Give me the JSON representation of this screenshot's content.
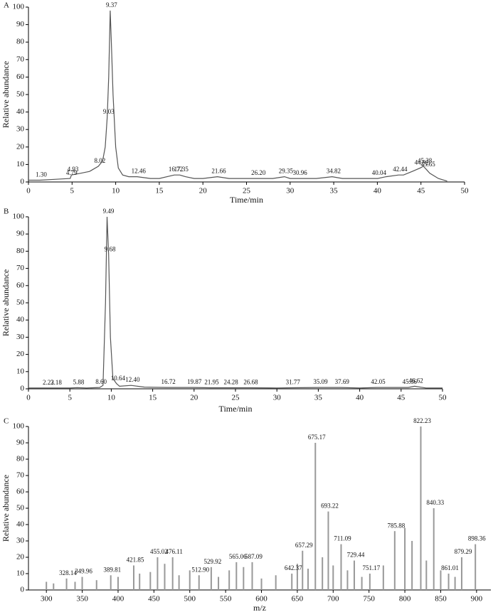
{
  "chart_data": [
    {
      "type": "line",
      "panel_label": "A",
      "x_label": "Time/min",
      "y_label": "Relative abundance",
      "color": "#555555",
      "xlim": [
        0,
        50
      ],
      "xticks": [
        0,
        5,
        10,
        15,
        20,
        25,
        30,
        35,
        40,
        45,
        50
      ],
      "ylim": [
        0,
        100
      ],
      "yticks": [
        0,
        10,
        20,
        30,
        40,
        50,
        60,
        70,
        80,
        90,
        100
      ],
      "x": [
        0,
        1.3,
        3,
        4.79,
        4.93,
        6,
        7,
        8.02,
        8.5,
        8.8,
        9.03,
        9.2,
        9.37,
        9.5,
        9.7,
        10,
        10.3,
        10.8,
        11.5,
        12.46,
        14,
        15,
        16.72,
        17.35,
        18,
        19,
        20,
        21.66,
        23,
        24,
        26.2,
        27,
        28,
        29.35,
        30,
        30.96,
        32,
        33,
        34.82,
        36,
        37,
        38,
        40.04,
        41,
        42.44,
        43,
        44,
        44.92,
        45.28,
        45.65,
        46,
        47,
        48
      ],
      "values": [
        1,
        1,
        1.5,
        2,
        4,
        5,
        6,
        9,
        12,
        20,
        37,
        60,
        98,
        80,
        50,
        20,
        8,
        4,
        3,
        3,
        2,
        2,
        4,
        4,
        3,
        2,
        2,
        3,
        2,
        2,
        2,
        2,
        2,
        3,
        2,
        2,
        2,
        2,
        3,
        2,
        2,
        2,
        2,
        3,
        4,
        4,
        6,
        8,
        9,
        7,
        5,
        2,
        0.5
      ],
      "x_labels": [
        null,
        "1.30",
        null,
        "4.79",
        "4.93",
        null,
        null,
        "8.02",
        null,
        null,
        "9.03",
        null,
        "9.37",
        null,
        null,
        null,
        null,
        null,
        null,
        "12.46",
        null,
        null,
        "16.72",
        "17.35",
        null,
        null,
        null,
        "21.66",
        null,
        null,
        "26.20",
        null,
        null,
        "29.35",
        null,
        "30.96",
        null,
        null,
        "34.82",
        null,
        null,
        null,
        "40.04",
        null,
        "42.44",
        null,
        null,
        "44.92",
        "45.28",
        "45.65",
        null,
        null,
        null
      ]
    },
    {
      "type": "line",
      "panel_label": "B",
      "x_label": "Time/min",
      "y_label": "Relative abundance",
      "color": "#555555",
      "xlim": [
        0,
        50
      ],
      "xticks": [
        0,
        5,
        10,
        15,
        20,
        25,
        30,
        35,
        40,
        45,
        50
      ],
      "ylim": [
        0,
        100
      ],
      "yticks": [
        0,
        10,
        20,
        30,
        40,
        50,
        60,
        70,
        80,
        90,
        100
      ],
      "x": [
        0,
        2.22,
        3.18,
        5,
        5.88,
        7,
        8.6,
        9,
        9.3,
        9.49,
        9.68,
        9.9,
        10.2,
        10.64,
        11,
        12.4,
        14,
        16.72,
        19.87,
        21.95,
        24.28,
        26.68,
        30,
        31.77,
        35.09,
        37.69,
        40,
        42.05,
        45.86,
        46.62,
        48,
        50
      ],
      "values": [
        0.5,
        0.5,
        0.5,
        0.5,
        0.7,
        0.5,
        0.8,
        2,
        50,
        100,
        78,
        30,
        6,
        3,
        1.5,
        2,
        1,
        0.8,
        0.8,
        0.6,
        0.6,
        0.6,
        0.5,
        0.6,
        0.8,
        0.8,
        0.5,
        0.8,
        0.8,
        1.5,
        0.5,
        0.5
      ],
      "x_labels": [
        null,
        "2.22",
        "3.18",
        null,
        "5.88",
        null,
        "8.60",
        null,
        null,
        "9.49",
        "9.68",
        null,
        null,
        "10.64",
        null,
        "12.40",
        null,
        "16.72",
        "19.87",
        "21.95",
        "24.28",
        "26.68",
        null,
        "31.77",
        "35.09",
        "37.69",
        null,
        "42.05",
        "45.86",
        "46.62",
        null,
        null
      ]
    },
    {
      "type": "bar",
      "panel_label": "C",
      "x_label": "m/z",
      "y_label": "Relative abundance",
      "color": "#999999",
      "xlim": [
        275,
        920
      ],
      "xticks": [
        300,
        350,
        400,
        450,
        500,
        550,
        600,
        650,
        700,
        750,
        800,
        850,
        900
      ],
      "ylim": [
        0,
        100
      ],
      "yticks": [
        0,
        10,
        20,
        30,
        40,
        50,
        60,
        70,
        80,
        90,
        100
      ],
      "x": [
        300,
        310,
        328.14,
        340,
        349.96,
        370,
        389.81,
        400,
        421.85,
        430,
        445,
        455.02,
        465,
        476.11,
        485,
        500,
        512.9,
        529.92,
        540,
        555,
        565.06,
        575,
        587.09,
        600,
        620,
        642.37,
        650,
        657.29,
        665,
        675.17,
        685,
        693.22,
        700,
        711.09,
        720,
        729.44,
        740,
        751.17,
        770,
        785.88,
        800,
        810,
        822.23,
        830,
        840.33,
        850,
        861.01,
        870,
        879.29,
        898.36
      ],
      "values": [
        5,
        4,
        7,
        5,
        8,
        6,
        9,
        8,
        15,
        10,
        11,
        20,
        16,
        20,
        9,
        12,
        9,
        14,
        8,
        12,
        17,
        14,
        17,
        7,
        9,
        10,
        16,
        24,
        13,
        90,
        20,
        48,
        15,
        28,
        12,
        18,
        8,
        10,
        15,
        36,
        38,
        30,
        100,
        18,
        50,
        12,
        10,
        8,
        20,
        28
      ],
      "x_labels": [
        null,
        null,
        "328.14",
        null,
        "349.96",
        null,
        "389.81",
        null,
        "421.85",
        null,
        null,
        "455.02",
        null,
        "476.11",
        null,
        null,
        "512.90",
        "529.92",
        null,
        null,
        "565.06",
        null,
        "587.09",
        null,
        null,
        "642.37",
        null,
        "657.29",
        null,
        "675.17",
        null,
        "693.22",
        null,
        "711.09",
        null,
        "729.44",
        null,
        "751.17",
        null,
        "785.88",
        null,
        null,
        "822.23",
        null,
        "840.33",
        null,
        "861.01",
        null,
        "879.29",
        "898.36"
      ]
    }
  ]
}
